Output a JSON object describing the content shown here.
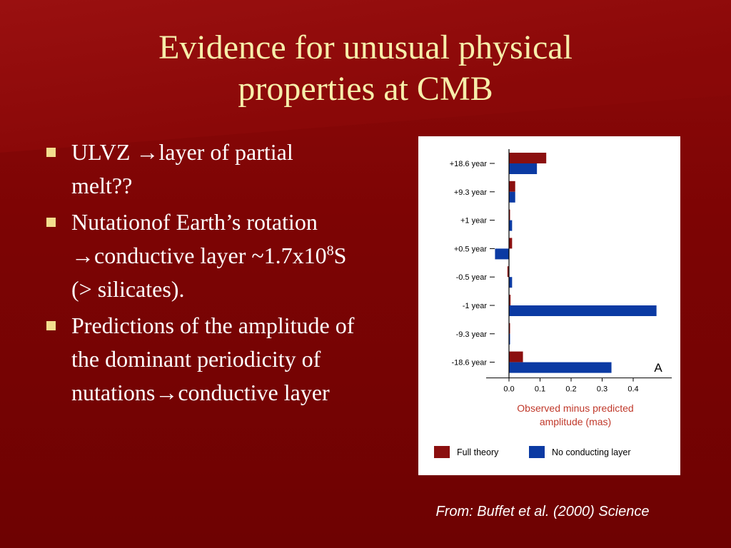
{
  "slide": {
    "title_lines": [
      "Evidence for unusual physical",
      "properties at CMB"
    ],
    "bullets": [
      {
        "text": "ULVZ →layer of partial melt??"
      },
      {
        "pre": "Nutationof Earth’s rotation →conductive layer ~1.7x10",
        "sup": "8",
        "post": "S (> silicates)."
      },
      {
        "text": "Predictions of the amplitude of the dominant periodicity of nutations→conductive layer"
      }
    ],
    "credit": "From: Buffet et al. (2000) Science"
  },
  "colors": {
    "background": "#7d0404",
    "title": "#f6eeaa",
    "bullet_marker": "#f3dd8e",
    "full_theory": "#8b0f0f",
    "no_conducting_layer": "#0b3aa3",
    "axis_title": "#c0392b"
  },
  "chart_data": {
    "type": "bar",
    "orientation": "horizontal",
    "categories": [
      "+18.6 year",
      "+9.3 year",
      "+1 year",
      "+0.5 year",
      "-0.5 year",
      "-1 year",
      "-9.3 year",
      "-18.6 year"
    ],
    "series": [
      {
        "name": "Full theory",
        "values": [
          0.12,
          0.02,
          0.0,
          0.01,
          -0.005,
          0.005,
          0.0,
          0.045
        ]
      },
      {
        "name": "No conducting layer",
        "values": [
          0.09,
          0.02,
          0.01,
          -0.045,
          0.01,
          0.475,
          0.0,
          0.33
        ]
      }
    ],
    "xticks": [
      "0.0",
      "0.1",
      "0.2",
      "0.3",
      "0.4"
    ],
    "xlabel": "Observed minus predicted amplitude (mas)",
    "panel_label": "A",
    "xlim": [
      -0.05,
      0.5
    ],
    "legend_position": "bottom"
  }
}
